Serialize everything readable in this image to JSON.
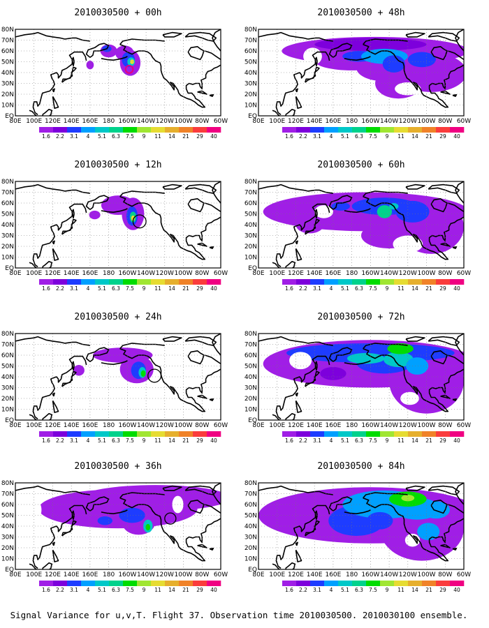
{
  "panels": [
    {
      "title": "2010030500 + 00h",
      "circle": "magenta"
    },
    {
      "title": "2010030500 + 48h",
      "circle": null
    },
    {
      "title": "2010030500 + 12h",
      "circle": "black"
    },
    {
      "title": "2010030500 + 60h",
      "circle": null
    },
    {
      "title": "2010030500 + 24h",
      "circle": "black"
    },
    {
      "title": "2010030500 + 72h",
      "circle": "black"
    },
    {
      "title": "2010030500 + 36h",
      "circle": null
    },
    {
      "title": "2010030500 + 84h",
      "circle": null
    }
  ],
  "lon_labels": [
    "80E",
    "100E",
    "120E",
    "140E",
    "160E",
    "180",
    "160W",
    "140W",
    "120W",
    "100W",
    "80W",
    "60W"
  ],
  "lat_labels": [
    "80N",
    "70N",
    "60N",
    "50N",
    "40N",
    "30N",
    "20N",
    "10N",
    "EQ"
  ],
  "colorbar": {
    "labels": [
      "1.6",
      "2.2",
      "3.1",
      "4",
      "5.1",
      "6.3",
      "7.5",
      "9",
      "11",
      "14",
      "21",
      "29",
      "40"
    ],
    "colors": [
      "#a01ee6",
      "#7d00dc",
      "#1e3cff",
      "#00a0ff",
      "#00c8c8",
      "#00d28c",
      "#00dc00",
      "#a0e632",
      "#e6dc32",
      "#e6af2d",
      "#f08228",
      "#fa3c3c",
      "#f00082"
    ]
  },
  "caption": "Signal Variance for u,v,T. Flight 37. Observation time 2010030500. 2010030100 ensemble."
}
